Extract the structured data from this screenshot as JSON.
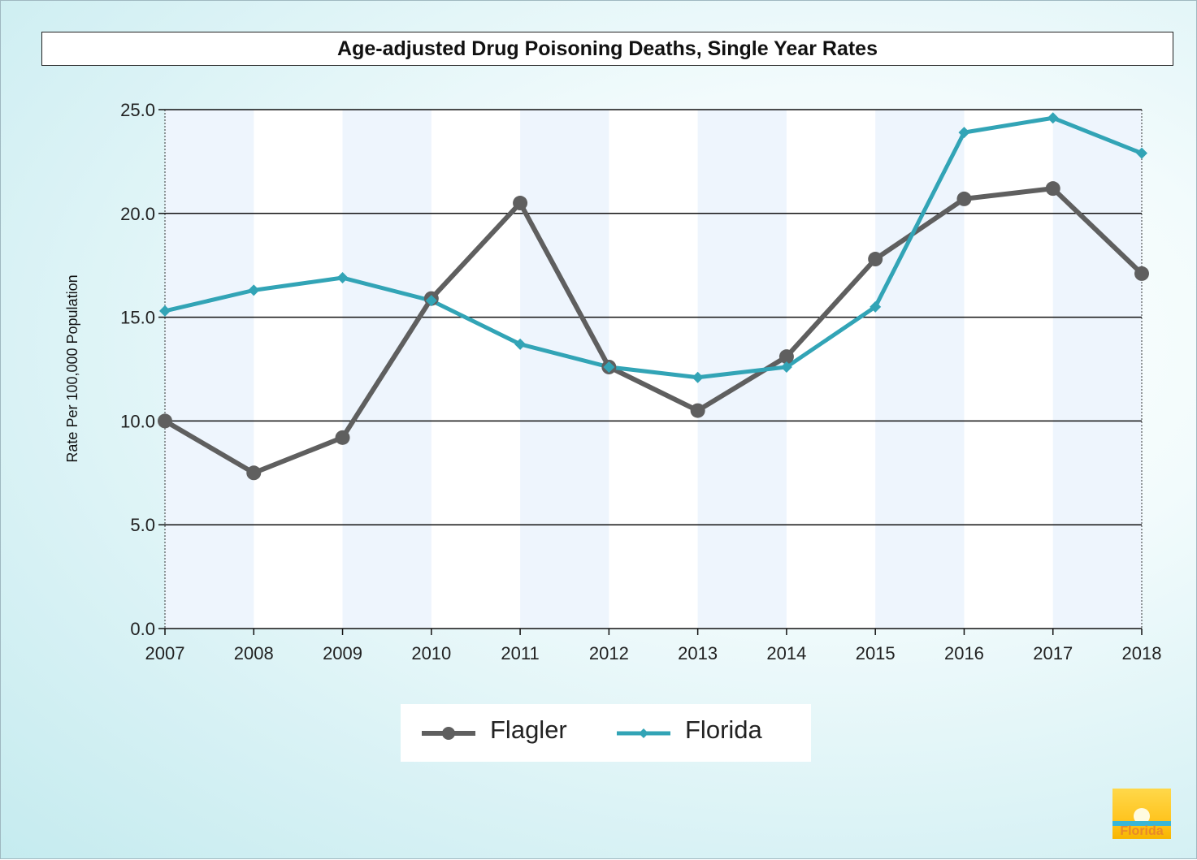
{
  "chart_data": {
    "type": "line",
    "title": "Age-adjusted Drug Poisoning Deaths, Single Year Rates",
    "xlabel": "",
    "ylabel": "Rate Per 100,000 Population",
    "x": [
      "2007",
      "2008",
      "2009",
      "2010",
      "2011",
      "2012",
      "2013",
      "2014",
      "2015",
      "2016",
      "2017",
      "2018"
    ],
    "ylim": [
      0,
      25
    ],
    "yticks": [
      "0.0",
      "5.0",
      "10.0",
      "15.0",
      "20.0",
      "25.0"
    ],
    "ytick_values": [
      0,
      5,
      10,
      15,
      20,
      25
    ],
    "grid": true,
    "legend_position": "bottom-center",
    "series": [
      {
        "name": "Flagler",
        "color": "#5f5f5f",
        "marker": "circle",
        "values": [
          10.0,
          7.5,
          9.2,
          15.9,
          20.5,
          12.6,
          10.5,
          13.1,
          17.8,
          20.7,
          21.2,
          17.1
        ]
      },
      {
        "name": "Florida",
        "color": "#32a4b6",
        "marker": "diamond",
        "values": [
          15.3,
          16.3,
          16.9,
          15.8,
          13.7,
          12.6,
          12.1,
          12.6,
          15.5,
          23.9,
          24.6,
          22.9
        ]
      }
    ]
  },
  "logo": {
    "text": "Florida"
  }
}
